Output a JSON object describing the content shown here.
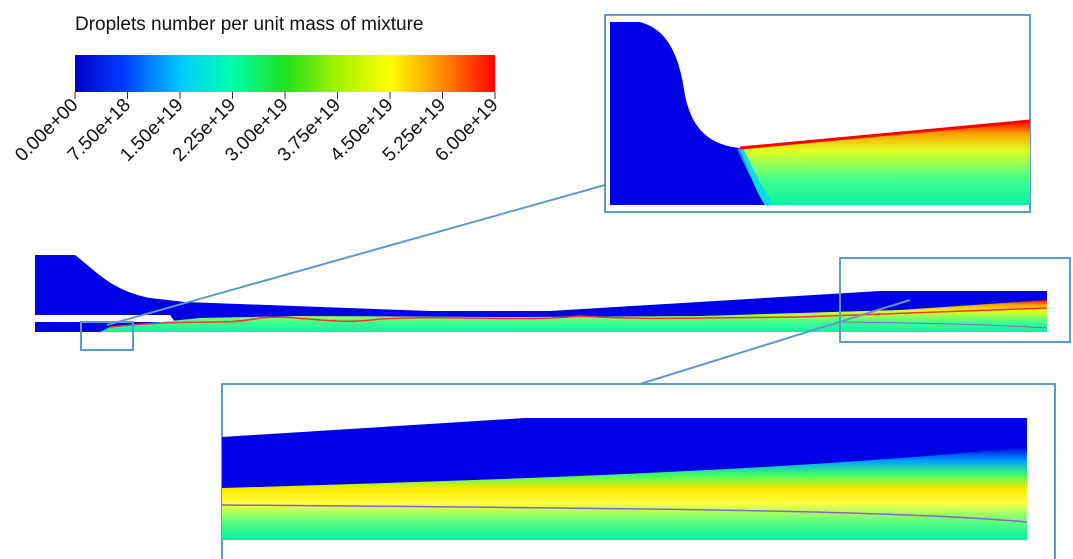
{
  "colorbar": {
    "title": "Droplets number per unit mass of mixture",
    "ticks": [
      {
        "value": 0,
        "label": "0.00e+00"
      },
      {
        "value": 7.5e+18,
        "label": "7.50e+18"
      },
      {
        "value": 1.5e+19,
        "label": "1.50e+19"
      },
      {
        "value": 2.25e+19,
        "label": "2.25e+19"
      },
      {
        "value": 3e+19,
        "label": "3.00e+19"
      },
      {
        "value": 3.75e+19,
        "label": "3.75e+19"
      },
      {
        "value": 4.5e+19,
        "label": "4.50e+19"
      },
      {
        "value": 5.25e+19,
        "label": "5.25e+19"
      },
      {
        "value": 6e+19,
        "label": "6.00e+19"
      }
    ]
  }
}
